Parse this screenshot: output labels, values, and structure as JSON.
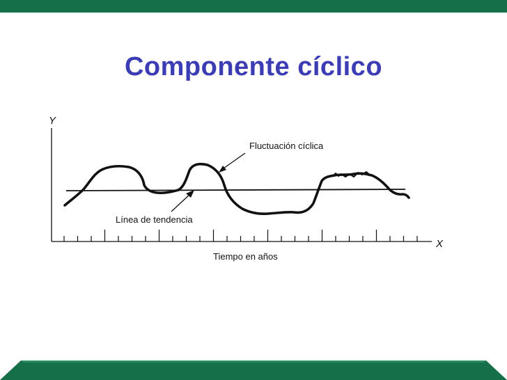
{
  "slide": {
    "title": "Componente cíclico",
    "colors": {
      "band": "#157049",
      "title": "#3c3cb4",
      "ink": "#111111"
    }
  },
  "diagram": {
    "y_axis_label": "Y",
    "x_axis_label": "X",
    "cyclic_label": "Fluctuación cíclica",
    "trend_label": "Línea de tendencia",
    "time_label": "Tiempo en años"
  }
}
